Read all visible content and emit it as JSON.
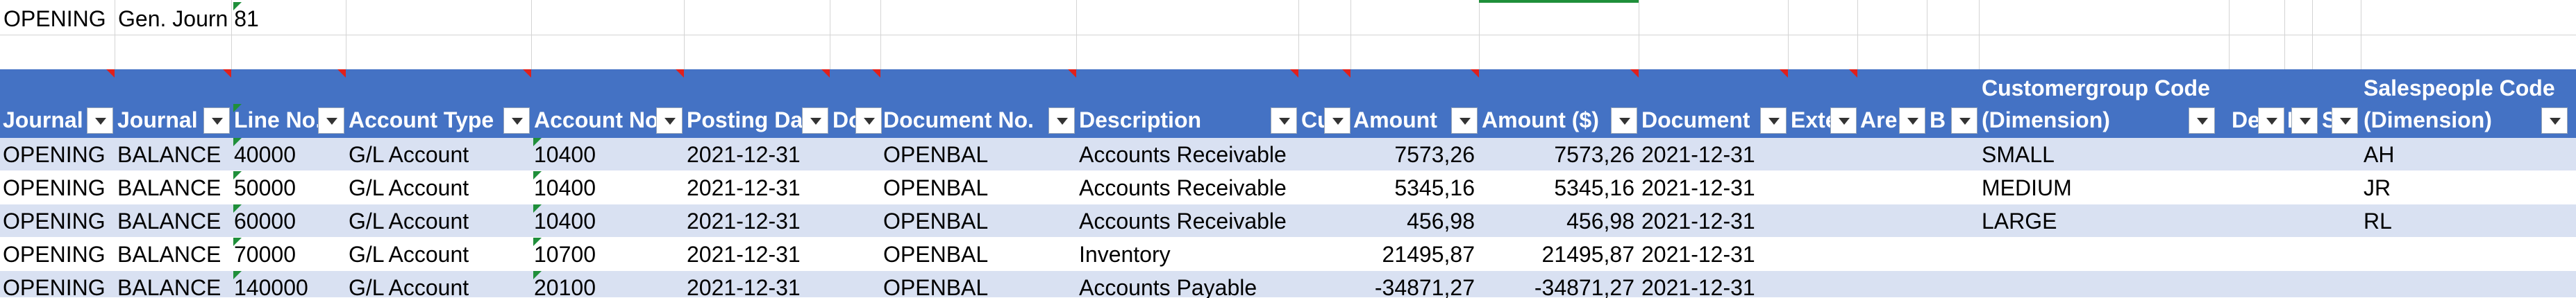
{
  "sheet": {
    "top_cell_a1": "OPENING",
    "top_cell_b1": "Gen. Journ 81"
  },
  "headers": {
    "journal_template": "Journal",
    "journal_batch": "Journal",
    "line_no": "Line No.",
    "account_type": "Account Type",
    "account_no": "Account No",
    "posting_date": "Posting Da",
    "doc_type": "Do",
    "document_no": "Document No.",
    "description": "Description",
    "currency": "Cu",
    "amount": "Amount",
    "amount_lcy": "Amount ($)",
    "document_date": "Document",
    "external": "Exte",
    "area": "Are",
    "b": "B",
    "customergroup_top": "Customergroup Code",
    "customergroup_bottom": "(Dimension)",
    "de": "De",
    "p": "P",
    "s": "S",
    "salespeople_top": "Salespeople Code",
    "salespeople_bottom": "(Dimension)"
  },
  "rows": [
    {
      "journal": "OPENING",
      "batch": "BALANCE",
      "line": "40000",
      "acct_type": "G/L Account",
      "acct_no": "10400",
      "posting": "2021-12-31",
      "doc_no": "OPENBAL",
      "desc": "Accounts Receivable",
      "amount": "7573,26",
      "amount_lcy": "7573,26",
      "doc_date": "2021-12-31",
      "custgroup": "SMALL",
      "salesperson": "AH"
    },
    {
      "journal": "OPENING",
      "batch": "BALANCE",
      "line": "50000",
      "acct_type": "G/L Account",
      "acct_no": "10400",
      "posting": "2021-12-31",
      "doc_no": "OPENBAL",
      "desc": "Accounts Receivable",
      "amount": "5345,16",
      "amount_lcy": "5345,16",
      "doc_date": "2021-12-31",
      "custgroup": "MEDIUM",
      "salesperson": "JR"
    },
    {
      "journal": "OPENING",
      "batch": "BALANCE",
      "line": "60000",
      "acct_type": "G/L Account",
      "acct_no": "10400",
      "posting": "2021-12-31",
      "doc_no": "OPENBAL",
      "desc": "Accounts Receivable",
      "amount": "456,98",
      "amount_lcy": "456,98",
      "doc_date": "2021-12-31",
      "custgroup": "LARGE",
      "salesperson": "RL"
    },
    {
      "journal": "OPENING",
      "batch": "BALANCE",
      "line": "70000",
      "acct_type": "G/L Account",
      "acct_no": "10700",
      "posting": "2021-12-31",
      "doc_no": "OPENBAL",
      "desc": "Inventory",
      "amount": "21495,87",
      "amount_lcy": "21495,87",
      "doc_date": "2021-12-31",
      "custgroup": "",
      "salesperson": ""
    },
    {
      "journal": "OPENING",
      "batch": "BALANCE",
      "line": "140000",
      "acct_type": "G/L Account",
      "acct_no": "20100",
      "posting": "2021-12-31",
      "doc_no": "OPENBAL",
      "desc": "Accounts Payable",
      "amount": "-34871,27",
      "amount_lcy": "-34871,27",
      "doc_date": "2021-12-31",
      "custgroup": "",
      "salesperson": ""
    }
  ]
}
